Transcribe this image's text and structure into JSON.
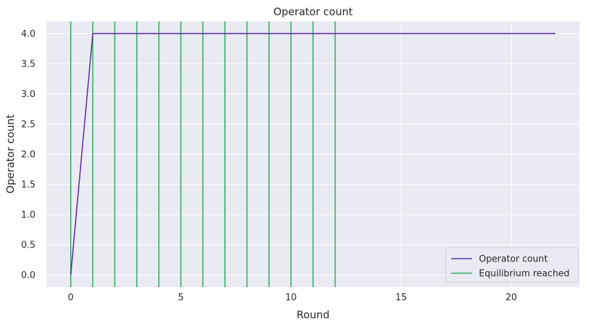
{
  "chart_data": {
    "type": "line",
    "title": "Operator count",
    "xlabel": "Round",
    "ylabel": "Operator count",
    "xlim": [
      -1.1,
      23.1
    ],
    "ylim": [
      -0.2,
      4.2
    ],
    "xticks": [
      0,
      5,
      10,
      15,
      20
    ],
    "yticks": [
      0.0,
      0.5,
      1.0,
      1.5,
      2.0,
      2.5,
      3.0,
      3.5,
      4.0
    ],
    "xtick_labels": [
      "0",
      "5",
      "10",
      "15",
      "20"
    ],
    "ytick_labels": [
      "0.0",
      "0.5",
      "1.0",
      "1.5",
      "2.0",
      "2.5",
      "3.0",
      "3.5",
      "4.0"
    ],
    "grid": true,
    "background": "#eaeaf2",
    "series": [
      {
        "name": "Operator count",
        "color": "#5b2ea6",
        "x": [
          0,
          1,
          2,
          3,
          4,
          5,
          6,
          7,
          8,
          9,
          10,
          11,
          12,
          13,
          14,
          15,
          16,
          17,
          18,
          19,
          20,
          21,
          22
        ],
        "y": [
          0,
          4,
          4,
          4,
          4,
          4,
          4,
          4,
          4,
          4,
          4,
          4,
          4,
          4,
          4,
          4,
          4,
          4,
          4,
          4,
          4,
          4,
          4
        ]
      }
    ],
    "vlines": {
      "name": "Equilibrium reached",
      "color": "#2eb062",
      "x": [
        0,
        1,
        2,
        3,
        4,
        5,
        6,
        7,
        8,
        9,
        10,
        11,
        12
      ]
    },
    "legend": {
      "placement": "lower-right",
      "entries": [
        "Operator count",
        "Equilibrium reached"
      ]
    }
  }
}
